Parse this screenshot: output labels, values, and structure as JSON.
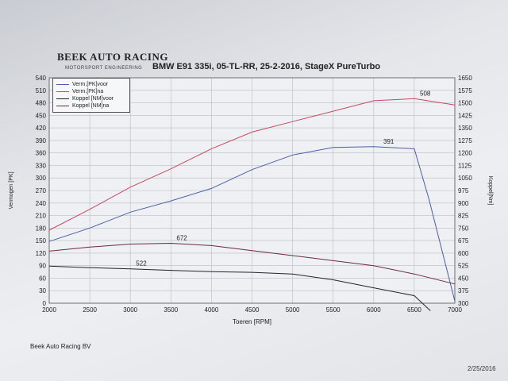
{
  "header": {
    "logo_text": "BEEK AUTO RACING",
    "logo_subtext": "MOTORSPORT ENGINEERING",
    "chart_title": "BMW E91 335i, 05-TL-RR, 25-2-2016, StageX PureTurbo"
  },
  "footer": {
    "company": "Beek Auto Racing BV",
    "date": "2/25/2016"
  },
  "chart_data": {
    "type": "line",
    "title": "BMW E91 335i, 05-TL-RR, 25-2-2016, StageX PureTurbo",
    "xlabel": "Toeren [RPM]",
    "ylabel": "Vermogen [PK]",
    "y2label": "Koppel[Nm]",
    "xlim": [
      2000,
      7000
    ],
    "ylim": [
      0,
      540
    ],
    "y2lim": [
      300,
      1650
    ],
    "x_ticks": [
      "2000",
      "2500",
      "3000",
      "3500",
      "4000",
      "4500",
      "5000",
      "5500",
      "6000",
      "6500",
      "7000"
    ],
    "y_ticks": [
      "0",
      "30",
      "60",
      "90",
      "120",
      "150",
      "180",
      "210",
      "240",
      "270",
      "300",
      "330",
      "360",
      "390",
      "420",
      "450",
      "480",
      "510",
      "540"
    ],
    "y2_ticks": [
      "300",
      "375",
      "450",
      "525",
      "600",
      "675",
      "750",
      "825",
      "900",
      "975",
      "1050",
      "1125",
      "1200",
      "1275",
      "1350",
      "1425",
      "1500",
      "1575",
      "1650"
    ],
    "grid": true,
    "legend": "top-left",
    "colors": {
      "verm_voor": "#4a5fa5",
      "verm_na": "#c44a5e",
      "koppel_voor": "#1f2530",
      "koppel_na": "#6e2a3a"
    },
    "series": [
      {
        "name": "Verm.[PK]voor",
        "axis": "left",
        "x": [
          2000,
          2500,
          3000,
          3500,
          4000,
          4500,
          5000,
          5500,
          6000,
          6500,
          6680,
          7000
        ],
        "y": [
          148,
          180,
          218,
          245,
          275,
          320,
          355,
          373,
          375,
          370,
          250,
          5
        ]
      },
      {
        "name": "Verm.[PK]na",
        "axis": "left",
        "x": [
          2000,
          2500,
          3000,
          3500,
          4000,
          4500,
          5000,
          5500,
          6000,
          6500,
          7000
        ],
        "y": [
          175,
          225,
          278,
          322,
          370,
          410,
          435,
          460,
          485,
          490,
          475
        ]
      },
      {
        "name": "Koppel [NM]voor",
        "axis": "right",
        "x": [
          2000,
          2500,
          3000,
          3500,
          4000,
          4500,
          5000,
          5500,
          6000,
          6500,
          6700
        ],
        "y": [
          522,
          513,
          506,
          497,
          489,
          485,
          475,
          440,
          392,
          345,
          255
        ]
      },
      {
        "name": "Koppel [NM]na",
        "axis": "right",
        "x": [
          2000,
          2500,
          3000,
          3500,
          4000,
          4500,
          5000,
          5500,
          6000,
          6500,
          7000
        ],
        "y": [
          612,
          636,
          654,
          659,
          645,
          615,
          585,
          555,
          525,
          475,
          415
        ]
      }
    ],
    "annotations": [
      {
        "text": "508",
        "series": "Verm.[PK]na",
        "x": 6550,
        "y": 490
      },
      {
        "text": "391",
        "series": "Verm.[PK]voor",
        "x": 6100,
        "y": 375
      },
      {
        "text": "672",
        "series": "Koppel [NM]na",
        "x": 3550,
        "y": 659
      },
      {
        "text": "522",
        "series": "Koppel [NM]voor",
        "x": 3050,
        "y": 506
      }
    ]
  }
}
